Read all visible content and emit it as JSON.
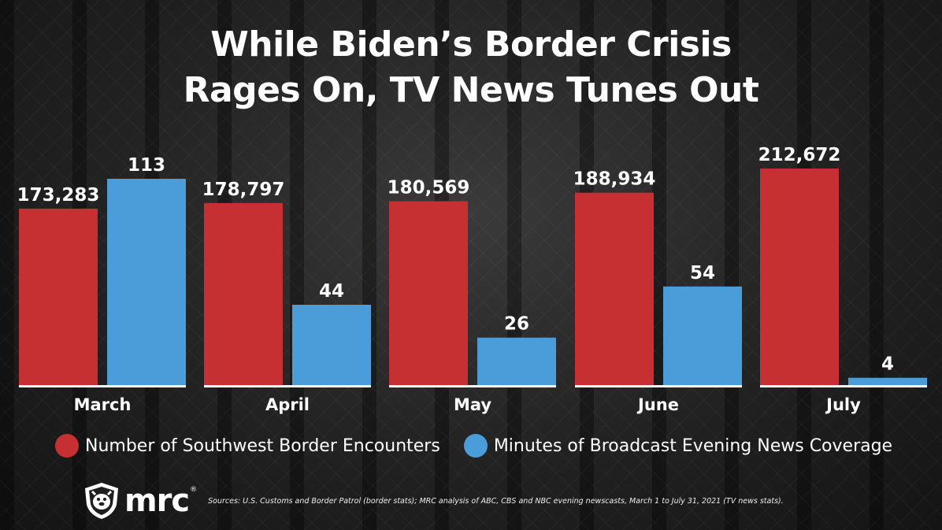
{
  "title_lines": [
    "While Biden’s Border Crisis",
    "Rages On, TV News Tunes Out"
  ],
  "chart_data": {
    "type": "bar",
    "categories": [
      "March",
      "April",
      "May",
      "June",
      "July"
    ],
    "series": [
      {
        "name": "Number of Southwest Border Encounters",
        "color": "#c73033",
        "values": [
          173283,
          178797,
          180569,
          188934,
          212672
        ],
        "labels": [
          "173,283",
          "178,797",
          "180,569",
          "188,934",
          "212,672"
        ]
      },
      {
        "name": "Minutes of Broadcast Evening News Coverage",
        "color": "#4a9dd9",
        "values": [
          113,
          44,
          26,
          54,
          4
        ],
        "labels": [
          "113",
          "44",
          "26",
          "54",
          "4"
        ]
      }
    ],
    "legend_position": "bottom"
  },
  "logo": {
    "text": "mrc",
    "tm": "®"
  },
  "sources": "Sources: U.S. Customs and Border Patrol (border stats); MRC analysis of ABC, CBS and NBC evening newscasts, March 1 to July 31, 2021 (TV news stats)."
}
